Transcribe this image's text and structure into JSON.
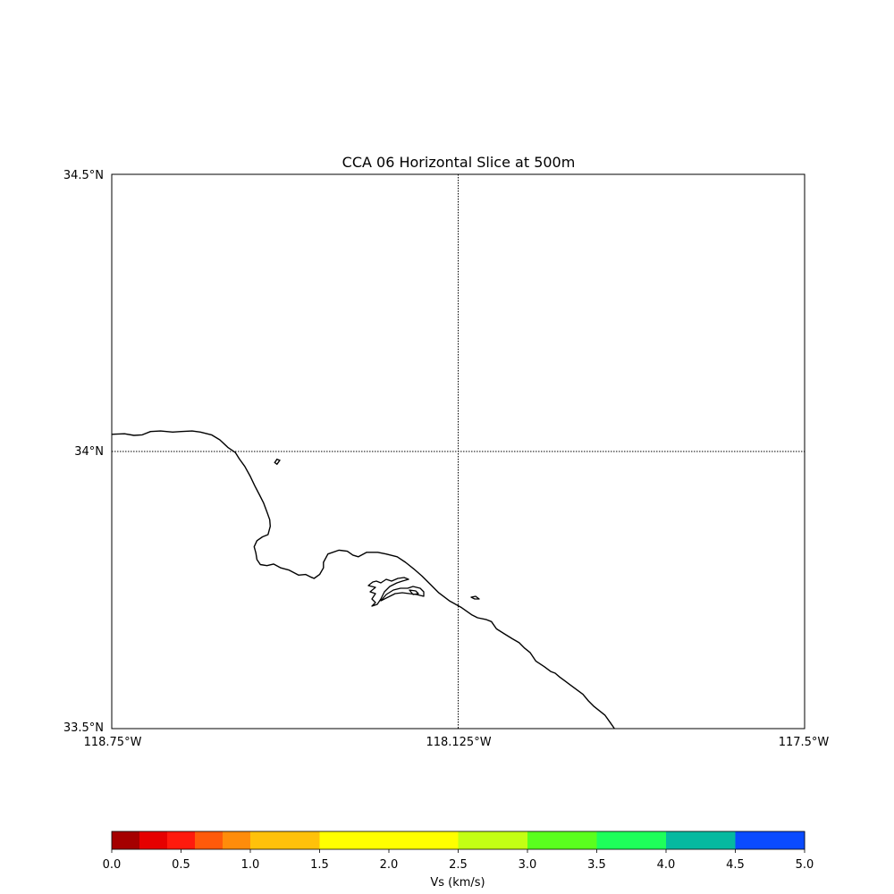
{
  "title": "CCA 06 Horizontal Slice at 500m",
  "map": {
    "lat_labels": [
      {
        "value": 34.5,
        "label": "34.5°N"
      },
      {
        "value": 34.0,
        "label": "34°N"
      },
      {
        "value": 33.5,
        "label": "33.5°N"
      }
    ],
    "lon_labels": [
      {
        "value": -118.75,
        "label": "118.75°W"
      },
      {
        "value": -118.125,
        "label": "118.125°W"
      },
      {
        "value": -117.5,
        "label": "117.5°W"
      }
    ],
    "lon_range": [
      -118.75,
      -117.5
    ],
    "lat_range": [
      33.5,
      34.5
    ],
    "gridlines": {
      "lons": [
        -118.125,
        -117.5
      ],
      "lats": [
        34.0,
        33.5
      ],
      "style": "dotted"
    },
    "coastline_color": "#000000",
    "coastline": [
      [
        -118.75,
        34.031
      ],
      [
        -118.727,
        34.032
      ],
      [
        -118.71,
        34.029
      ],
      [
        -118.695,
        34.03
      ],
      [
        -118.68,
        34.036
      ],
      [
        -118.662,
        34.037
      ],
      [
        -118.64,
        34.035
      ],
      [
        -118.625,
        34.036
      ],
      [
        -118.605,
        34.037
      ],
      [
        -118.59,
        34.035
      ],
      [
        -118.57,
        34.03
      ],
      [
        -118.555,
        34.021
      ],
      [
        -118.54,
        34.007
      ],
      [
        -118.527,
        33.998
      ],
      [
        -118.52,
        33.987
      ],
      [
        -118.51,
        33.973
      ],
      [
        -118.5,
        33.955
      ],
      [
        -118.492,
        33.938
      ],
      [
        -118.483,
        33.921
      ],
      [
        -118.476,
        33.907
      ],
      [
        -118.47,
        33.891
      ],
      [
        -118.465,
        33.877
      ],
      [
        -118.464,
        33.865
      ],
      [
        -118.468,
        33.85
      ],
      [
        -118.478,
        33.846
      ],
      [
        -118.488,
        33.839
      ],
      [
        -118.493,
        33.828
      ],
      [
        -118.49,
        33.817
      ],
      [
        -118.488,
        33.805
      ],
      [
        -118.482,
        33.796
      ],
      [
        -118.47,
        33.794
      ],
      [
        -118.458,
        33.797
      ],
      [
        -118.445,
        33.79
      ],
      [
        -118.43,
        33.786
      ],
      [
        -118.413,
        33.777
      ],
      [
        -118.4,
        33.778
      ],
      [
        -118.39,
        33.773
      ],
      [
        -118.385,
        33.771
      ],
      [
        -118.375,
        33.778
      ],
      [
        -118.368,
        33.79
      ],
      [
        -118.368,
        33.8
      ],
      [
        -118.36,
        33.815
      ],
      [
        -118.34,
        33.822
      ],
      [
        -118.325,
        33.82
      ],
      [
        -118.315,
        33.813
      ],
      [
        -118.305,
        33.81
      ],
      [
        -118.29,
        33.818
      ],
      [
        -118.27,
        33.818
      ],
      [
        -118.255,
        33.815
      ],
      [
        -118.235,
        33.81
      ],
      [
        -118.22,
        33.8
      ],
      [
        -118.205,
        33.788
      ],
      [
        -118.19,
        33.775
      ],
      [
        -118.175,
        33.76
      ],
      [
        -118.16,
        33.745
      ],
      [
        -118.14,
        33.73
      ],
      [
        -118.12,
        33.719
      ],
      [
        -118.1,
        33.705
      ],
      [
        -118.09,
        33.7
      ],
      [
        -118.075,
        33.697
      ],
      [
        -118.065,
        33.693
      ],
      [
        -118.056,
        33.68
      ],
      [
        -118.04,
        33.67
      ],
      [
        -118.027,
        33.662
      ],
      [
        -118.015,
        33.655
      ],
      [
        -118.005,
        33.645
      ],
      [
        -117.995,
        33.637
      ],
      [
        -117.985,
        33.622
      ],
      [
        -117.97,
        33.612
      ],
      [
        -117.958,
        33.603
      ],
      [
        -117.95,
        33.6
      ],
      [
        -117.942,
        33.593
      ],
      [
        -117.931,
        33.585
      ],
      [
        -117.915,
        33.573
      ],
      [
        -117.9,
        33.562
      ],
      [
        -117.89,
        33.55
      ],
      [
        -117.88,
        33.54
      ],
      [
        -117.86,
        33.524
      ],
      [
        -117.85,
        33.51
      ],
      [
        -117.843,
        33.5
      ]
    ],
    "island_points": [
      [
        -118.456,
        33.98
      ],
      [
        -118.452,
        33.986
      ],
      [
        -118.447,
        33.984
      ],
      [
        -118.452,
        33.977
      ],
      [
        -118.456,
        33.98
      ]
    ]
  },
  "colorbar": {
    "label": "Vs (km/s)",
    "ticks": [
      "0.0",
      "0.5",
      "1.0",
      "1.5",
      "2.0",
      "2.5",
      "3.0",
      "3.5",
      "4.0",
      "4.5",
      "5.0"
    ],
    "min": 0.0,
    "max": 5.0,
    "bins": [
      {
        "from": 0.0,
        "to": 0.2,
        "color": "#a50000"
      },
      {
        "from": 0.2,
        "to": 0.4,
        "color": "#e60000"
      },
      {
        "from": 0.4,
        "to": 0.6,
        "color": "#ff1a0d"
      },
      {
        "from": 0.6,
        "to": 0.8,
        "color": "#ff5a0a"
      },
      {
        "from": 0.8,
        "to": 1.0,
        "color": "#ff8c0a"
      },
      {
        "from": 1.0,
        "to": 1.5,
        "color": "#ffc10a"
      },
      {
        "from": 1.5,
        "to": 2.5,
        "color": "#ffff00"
      },
      {
        "from": 2.5,
        "to": 3.0,
        "color": "#c3ff14"
      },
      {
        "from": 3.0,
        "to": 3.5,
        "color": "#5aff1e"
      },
      {
        "from": 3.5,
        "to": 4.0,
        "color": "#1eff5a"
      },
      {
        "from": 4.0,
        "to": 4.5,
        "color": "#05b9a0"
      },
      {
        "from": 4.5,
        "to": 5.0,
        "color": "#0a4bff"
      }
    ]
  }
}
